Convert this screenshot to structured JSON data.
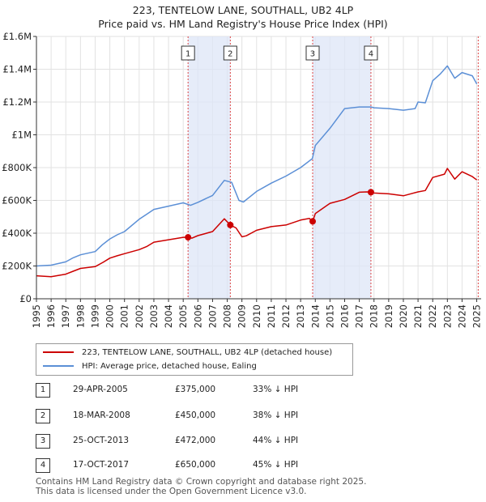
{
  "title": {
    "line1": "223, TENTELOW LANE, SOUTHALL, UB2 4LP",
    "line2": "Price paid vs. HM Land Registry's House Price Index (HPI)"
  },
  "colors": {
    "price_line": "#cc0000",
    "hpi_line": "#5b8fd6",
    "shade": "#dde6f7",
    "marker_line": "#dd4444",
    "grid": "#e2e2e2"
  },
  "legend": {
    "property": "223, TENTELOW LANE, SOUTHALL, UB2 4LP (detached house)",
    "hpi": "HPI: Average price, detached house, Ealing"
  },
  "transactions": [
    {
      "num": "1",
      "date": "29-APR-2005",
      "price": "£375,000",
      "pct": "33% ↓ HPI"
    },
    {
      "num": "2",
      "date": "18-MAR-2008",
      "price": "£450,000",
      "pct": "38% ↓ HPI"
    },
    {
      "num": "3",
      "date": "25-OCT-2013",
      "price": "£472,000",
      "pct": "44% ↓ HPI"
    },
    {
      "num": "4",
      "date": "17-OCT-2017",
      "price": "£650,000",
      "pct": "45% ↓ HPI"
    }
  ],
  "footer": {
    "line1": "Contains HM Land Registry data © Crown copyright and database right 2025.",
    "line2": "This data is licensed under the Open Government Licence v3.0."
  },
  "chart_data": {
    "type": "line",
    "xlim": [
      1995,
      2025.3
    ],
    "ylim": [
      0,
      1600000
    ],
    "x_ticks": [
      1995,
      1996,
      1997,
      1998,
      1999,
      2000,
      2001,
      2002,
      2003,
      2004,
      2005,
      2006,
      2007,
      2008,
      2009,
      2010,
      2011,
      2012,
      2013,
      2014,
      2015,
      2016,
      2017,
      2018,
      2019,
      2020,
      2021,
      2022,
      2023,
      2024,
      2025
    ],
    "y_ticks": [
      {
        "value": 0,
        "label": "£0"
      },
      {
        "value": 200000,
        "label": "£200K"
      },
      {
        "value": 400000,
        "label": "£400K"
      },
      {
        "value": 600000,
        "label": "£600K"
      },
      {
        "value": 800000,
        "label": "£800K"
      },
      {
        "value": 1000000,
        "label": "£1M"
      },
      {
        "value": 1200000,
        "label": "£1.2M"
      },
      {
        "value": 1400000,
        "label": "£1.4M"
      },
      {
        "value": 1600000,
        "label": "£1.6M"
      }
    ],
    "shaded_periods": [
      [
        2005.33,
        2008.21
      ],
      [
        2013.82,
        2017.79
      ]
    ],
    "sales": [
      {
        "label": "1",
        "x": 2005.33,
        "y": 375000
      },
      {
        "label": "2",
        "x": 2008.21,
        "y": 450000
      },
      {
        "label": "3",
        "x": 2013.82,
        "y": 472000
      },
      {
        "label": "4",
        "x": 2017.79,
        "y": 650000
      }
    ],
    "series": [
      {
        "name": "223, TENTELOW LANE, SOUTHALL, UB2 4LP (detached house)",
        "x": [
          1995,
          1996,
          1997,
          1997.5,
          1998,
          1999,
          1999.5,
          2000,
          2000.5,
          2001,
          2002,
          2002.5,
          2003,
          2004,
          2005,
          2005.33,
          2005.6,
          2006,
          2007,
          2007.8,
          2008.21,
          2008.6,
          2009,
          2009.3,
          2010,
          2011,
          2012,
          2013,
          2013.6,
          2013.82,
          2014,
          2015,
          2016,
          2017,
          2017.5,
          2017.79,
          2018,
          2019,
          2020,
          2021,
          2021.5,
          2022,
          2022.8,
          2023,
          2023.5,
          2024,
          2024.7,
          2025
        ],
        "values": [
          140000,
          135000,
          150000,
          168000,
          185000,
          196000,
          220000,
          248000,
          262000,
          275000,
          300000,
          318000,
          345000,
          360000,
          375000,
          375000,
          370000,
          385000,
          410000,
          488000,
          450000,
          432000,
          378000,
          384000,
          418000,
          440000,
          450000,
          480000,
          490000,
          472000,
          520000,
          582000,
          606000,
          650000,
          652000,
          650000,
          645000,
          640000,
          628000,
          652000,
          660000,
          740000,
          760000,
          795000,
          730000,
          775000,
          745000,
          725000
        ]
      },
      {
        "name": "HPI: Average price, detached house, Ealing",
        "x": [
          1995,
          1996,
          1997,
          1997.5,
          1998,
          1999,
          1999.5,
          2000,
          2000.5,
          2001,
          2002,
          2002.5,
          2003,
          2004,
          2005,
          2005.5,
          2006,
          2007,
          2007.8,
          2008.3,
          2008.8,
          2009.1,
          2010,
          2011,
          2012,
          2013,
          2013.8,
          2014,
          2015,
          2016,
          2017,
          2017.8,
          2018,
          2019,
          2020,
          2020.8,
          2021,
          2021.5,
          2022,
          2022.5,
          2023,
          2023.5,
          2024,
          2024.7,
          2025
        ],
        "values": [
          200000,
          205000,
          225000,
          250000,
          268000,
          288000,
          330000,
          365000,
          390000,
          410000,
          485000,
          515000,
          545000,
          565000,
          585000,
          570000,
          588000,
          630000,
          722000,
          710000,
          600000,
          590000,
          655000,
          705000,
          748000,
          800000,
          855000,
          935000,
          1040000,
          1160000,
          1170000,
          1170000,
          1165000,
          1160000,
          1150000,
          1160000,
          1200000,
          1195000,
          1330000,
          1370000,
          1420000,
          1345000,
          1380000,
          1360000,
          1310000
        ]
      }
    ]
  }
}
